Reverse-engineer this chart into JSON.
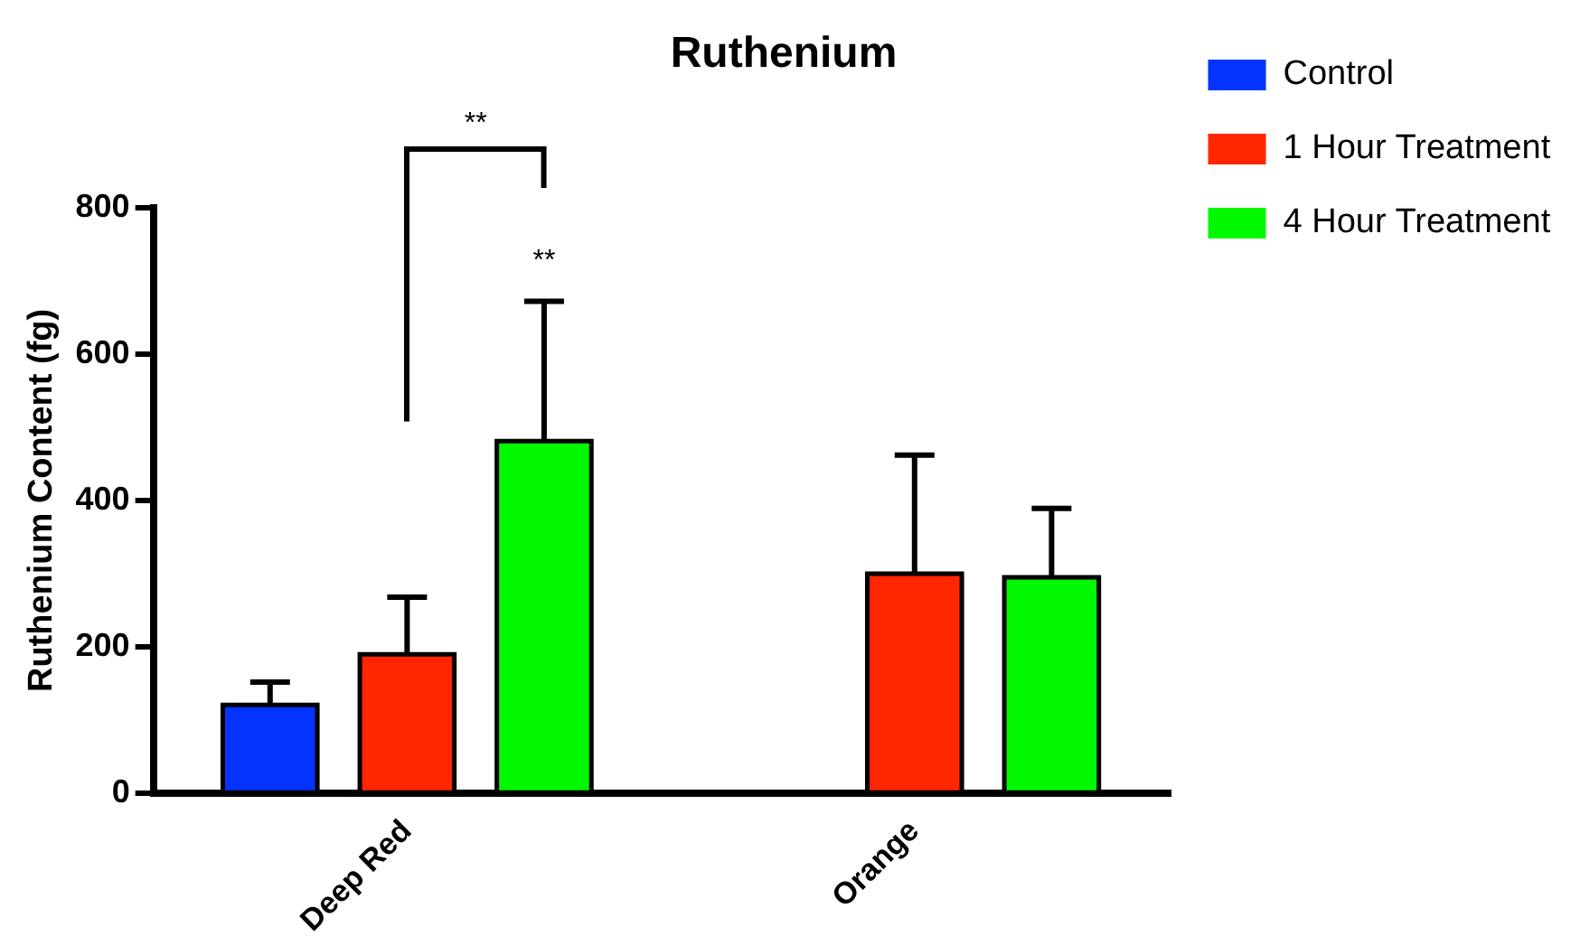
{
  "chart_data": {
    "type": "bar",
    "title": "Ruthenium",
    "ylabel": "Ruthenium Content (fg)",
    "categories": [
      "Deep Red",
      "Orange"
    ],
    "series": [
      {
        "name": "Control",
        "color": "#0433ff",
        "values": [
          121,
          null
        ],
        "errors": [
          [
            121,
            152
          ],
          null
        ]
      },
      {
        "name": "1 Hour Treatment",
        "color": "#ff2600",
        "values": [
          190,
          300
        ],
        "errors": [
          [
            190,
            268
          ],
          [
            300,
            462
          ]
        ]
      },
      {
        "name": "4 Hour Treatment",
        "color": "#00f900",
        "values": [
          481,
          295
        ],
        "errors": [
          [
            481,
            672
          ],
          [
            295,
            389
          ]
        ]
      }
    ],
    "ylim": [
      0,
      800
    ],
    "yticks": [
      0,
      200,
      400,
      600,
      800
    ],
    "grid": false,
    "legend": "right",
    "annotations": [
      "**",
      "**"
    ]
  }
}
